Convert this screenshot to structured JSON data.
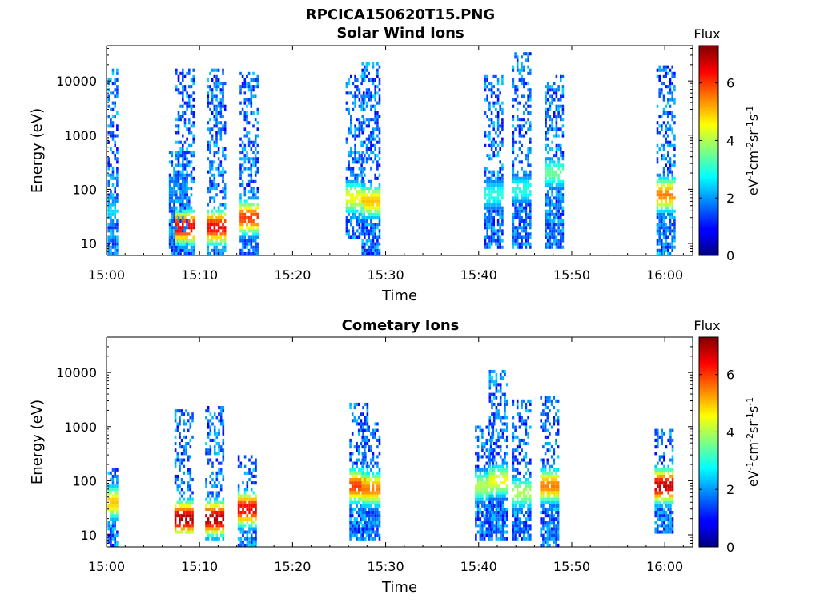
{
  "figure_title": "RPCICA150620T15.PNG",
  "panels": [
    {
      "title": "Solar Wind Ions"
    },
    {
      "title": "Cometary Ions"
    }
  ],
  "chart_data": [
    {
      "type": "heatmap",
      "title": "Solar Wind Ions",
      "xlabel": "Time",
      "ylabel": "Energy (eV)",
      "x_ticks": [
        "15:00",
        "15:10",
        "15:20",
        "15:30",
        "15:40",
        "15:50",
        "16:00"
      ],
      "xlim": [
        "15:00",
        "16:03"
      ],
      "y_ticks": [
        "10",
        "100",
        "1000",
        "10000"
      ],
      "ylim": [
        6,
        45000
      ],
      "y_scale": "log",
      "colorbar": {
        "label": "Flux",
        "units": "eV-1cm-2sr-1s-1",
        "ticks": [
          "0",
          "2",
          "4",
          "6"
        ],
        "range": [
          0,
          7.3
        ],
        "colormap": "jet"
      },
      "bursts": [
        {
          "t": 0.1,
          "emin": 6,
          "emax": 18000,
          "peak_energy": 40,
          "peak": 2.5
        },
        {
          "t": 7.6,
          "emin": 6,
          "emax": 500,
          "peak_energy": 100,
          "peak": 2.0
        },
        {
          "t": 8.3,
          "emin": 6,
          "emax": 17000,
          "peak_energy": 20,
          "peak": 6.5
        },
        {
          "t": 11.7,
          "emin": 6,
          "emax": 16000,
          "peak_energy": 20,
          "peak": 6.5
        },
        {
          "t": 15.2,
          "emin": 6,
          "emax": 14000,
          "peak_energy": 30,
          "peak": 6.0
        },
        {
          "t": 26.6,
          "emin": 12,
          "emax": 12000,
          "peak_energy": 70,
          "peak": 4.5
        },
        {
          "t": 28.3,
          "emin": 6,
          "emax": 23000,
          "peak_energy": 60,
          "peak": 5.0
        },
        {
          "t": 41.5,
          "emin": 8,
          "emax": 13000,
          "peak_energy": 80,
          "peak": 3.0
        },
        {
          "t": 44.5,
          "emin": 8,
          "emax": 32000,
          "peak_energy": 100,
          "peak": 3.0
        },
        {
          "t": 48.0,
          "emin": 8,
          "emax": 13000,
          "peak_energy": 200,
          "peak": 3.5
        },
        {
          "t": 60.0,
          "emin": 6,
          "emax": 20000,
          "peak_energy": 80,
          "peak": 5.5
        }
      ]
    },
    {
      "type": "heatmap",
      "title": "Cometary Ions",
      "xlabel": "Time",
      "ylabel": "Energy (eV)",
      "x_ticks": [
        "15:00",
        "15:10",
        "15:20",
        "15:30",
        "15:40",
        "15:50",
        "16:00"
      ],
      "xlim": [
        "15:00",
        "16:03"
      ],
      "y_ticks": [
        "10",
        "100",
        "1000",
        "10000"
      ],
      "ylim": [
        6,
        45000
      ],
      "y_scale": "log",
      "colorbar": {
        "label": "Flux",
        "units": "eV-1cm-2sr-1s-1",
        "ticks": [
          "0",
          "2",
          "4",
          "6"
        ],
        "range": [
          0,
          7.3
        ],
        "colormap": "jet"
      },
      "bursts": [
        {
          "t": 0.1,
          "emin": 6,
          "emax": 170,
          "peak_energy": 40,
          "peak": 5.0
        },
        {
          "t": 8.2,
          "emin": 10,
          "emax": 2000,
          "peak_energy": 20,
          "peak": 7.0
        },
        {
          "t": 11.5,
          "emin": 8,
          "emax": 2500,
          "peak_energy": 20,
          "peak": 7.0
        },
        {
          "t": 15.0,
          "emin": 6,
          "emax": 300,
          "peak_energy": 30,
          "peak": 6.5
        },
        {
          "t": 27.0,
          "emin": 8,
          "emax": 2800,
          "peak_energy": 80,
          "peak": 6.0
        },
        {
          "t": 28.3,
          "emin": 8,
          "emax": 1200,
          "peak_energy": 70,
          "peak": 5.5
        },
        {
          "t": 40.5,
          "emin": 8,
          "emax": 1000,
          "peak_energy": 80,
          "peak": 4.0
        },
        {
          "t": 42.0,
          "emin": 8,
          "emax": 11500,
          "peak_energy": 100,
          "peak": 4.5
        },
        {
          "t": 44.5,
          "emin": 8,
          "emax": 3000,
          "peak_energy": 60,
          "peak": 4.0
        },
        {
          "t": 47.5,
          "emin": 6,
          "emax": 3500,
          "peak_energy": 80,
          "peak": 5.5
        },
        {
          "t": 59.8,
          "emin": 10,
          "emax": 900,
          "peak_energy": 80,
          "peak": 6.8
        }
      ]
    }
  ]
}
